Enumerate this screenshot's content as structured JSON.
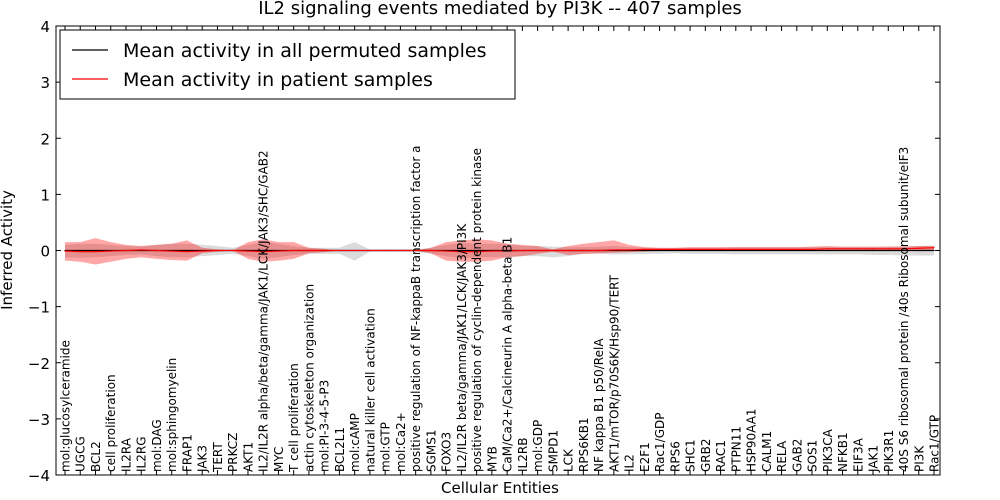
{
  "chart_data": {
    "type": "line",
    "title": "IL2 signaling events mediated by PI3K -- 407 samples",
    "xlabel": "Cellular Entities",
    "ylabel": "Inferred Activity",
    "ylim": [
      -4,
      4
    ],
    "yticks": [
      -4,
      -3,
      -2,
      -1,
      0,
      1,
      2,
      3,
      4
    ],
    "ytick_labels": [
      "−4",
      "−3",
      "−2",
      "−1",
      "0",
      "1",
      "2",
      "3",
      "4"
    ],
    "legend": {
      "placement": "top-left",
      "entries": [
        {
          "name": "Mean activity in all permuted samples",
          "color": "#000000"
        },
        {
          "name": "Mean activity in patient samples",
          "color": "#ff0000"
        }
      ]
    },
    "categories": [
      "mol:glucosylceramide",
      "UGCG",
      "BCL2",
      "cell proliferation",
      "IL2RA",
      "IL2RG",
      "mol:DAG",
      "mol:sphingomyelin",
      "FRAP1",
      "JAK3",
      "TERT",
      "PRKCZ",
      "AKT1",
      "IL2/IL2R alpha/beta/gamma/JAK1/LCK/JAK3/SHC/GAB2",
      "MYC",
      "T cell proliferation",
      "actin cytoskeleton organization",
      "mol:PI-3-4-5-P3",
      "BCL2L1",
      "mol:cAMP",
      "natural killer cell activation",
      "mol:GTP",
      "mol:Ca2+",
      "positive regulation of NF-kappaB transcription factor a",
      "SGMS1",
      "FOXO3",
      "IL2/IL2R beta/gamma/JAK1/LCK/JAK3/PI3K",
      "positive regulation of cyclin-dependent protein kinase",
      "MYB",
      "CaM/Ca2+/Calcineurin A alpha-beta B1",
      "IL2RB",
      "mol:GDP",
      "SMPD1",
      "LCK",
      "RPS6KB1",
      "NF kappa B1 p50/RelA",
      "AKT1/mTOR/p70S6K/Hsp90/TERT",
      "IL2",
      "E2F1",
      "Rac1/GDP",
      "RPS6",
      "SHC1",
      "GRB2",
      "RAC1",
      "PTPN11",
      "HSP90AA1",
      "CALM1",
      "RELA",
      "GAB2",
      "SOS1",
      "PIK3CA",
      "NFKB1",
      "EIF3A",
      "JAK1",
      "PIK3R1",
      "40S S6 ribosomal protein /40s Ribosomal subunit/eIF3",
      "PI3K",
      "Rac1/GTP"
    ],
    "series": [
      {
        "name": "Mean activity in all permuted samples",
        "color": "#000000",
        "values": [
          0,
          0,
          0,
          0,
          0,
          0,
          0,
          0,
          0,
          0,
          0,
          0,
          0,
          0,
          0,
          0,
          0,
          0,
          0,
          0,
          0,
          0,
          0,
          0,
          0,
          0,
          0,
          0,
          0,
          0,
          0,
          0,
          0,
          0,
          0,
          0,
          0,
          0,
          0,
          0,
          0,
          0,
          0,
          0,
          0,
          0,
          0,
          0,
          0,
          0,
          0,
          0,
          0,
          0,
          0,
          0,
          0,
          0
        ]
      },
      {
        "name": "Mean activity in patient samples",
        "color": "#ff0000",
        "values": [
          -0.01,
          -0.02,
          -0.02,
          -0.01,
          0.0,
          0.01,
          0.0,
          -0.01,
          -0.02,
          -0.01,
          0.0,
          0.0,
          -0.01,
          -0.02,
          -0.01,
          0.0,
          0.0,
          0.0,
          0.0,
          0.0,
          0.0,
          0.0,
          0.0,
          0.0,
          0.0,
          -0.01,
          -0.02,
          -0.02,
          -0.01,
          -0.01,
          0.0,
          0.0,
          0.0,
          0.0,
          0.0,
          0.0,
          0.01,
          0.01,
          0.02,
          0.02,
          0.02,
          0.02,
          0.02,
          0.02,
          0.02,
          0.02,
          0.02,
          0.02,
          0.02,
          0.02,
          0.03,
          0.03,
          0.03,
          0.03,
          0.03,
          0.03,
          0.04,
          0.05
        ]
      }
    ],
    "permuted_band_upper": [
      0.1,
      0.12,
      0.12,
      0.1,
      0.08,
      0.07,
      0.1,
      0.12,
      0.12,
      0.1,
      0.08,
      0.05,
      0.1,
      0.15,
      0.12,
      0.08,
      0.05,
      0.05,
      0.05,
      0.15,
      0.02,
      0.02,
      0.02,
      0.02,
      0.05,
      0.1,
      0.14,
      0.12,
      0.12,
      0.12,
      0.08,
      0.08,
      0.07,
      0.06,
      0.06,
      0.07,
      0.08,
      0.06,
      0.05,
      0.04,
      0.04,
      0.05,
      0.05,
      0.05,
      0.06,
      0.06,
      0.06,
      0.06,
      0.06,
      0.06,
      0.06,
      0.06,
      0.06,
      0.06,
      0.07,
      0.08,
      0.08,
      0.09
    ],
    "permuted_band_lower": [
      -0.12,
      -0.13,
      -0.12,
      -0.1,
      -0.08,
      -0.07,
      -0.1,
      -0.12,
      -0.12,
      -0.1,
      -0.08,
      -0.06,
      -0.1,
      -0.15,
      -0.12,
      -0.08,
      -0.06,
      -0.06,
      -0.06,
      -0.18,
      -0.02,
      -0.02,
      -0.02,
      -0.02,
      -0.06,
      -0.1,
      -0.14,
      -0.12,
      -0.12,
      -0.12,
      -0.1,
      -0.1,
      -0.12,
      -0.1,
      -0.06,
      -0.06,
      -0.07,
      -0.07,
      -0.06,
      -0.06,
      -0.05,
      -0.06,
      -0.06,
      -0.06,
      -0.07,
      -0.07,
      -0.07,
      -0.07,
      -0.07,
      -0.07,
      -0.07,
      -0.07,
      -0.07,
      -0.08,
      -0.08,
      -0.09,
      -0.09,
      -0.09
    ],
    "patient_band_upper": [
      0.15,
      0.15,
      0.22,
      0.15,
      0.1,
      0.08,
      0.1,
      0.12,
      0.18,
      0.05,
      0.02,
      0.0,
      0.15,
      0.2,
      0.15,
      0.15,
      0.05,
      0.03,
      0.0,
      0.0,
      0.0,
      0.0,
      0.0,
      0.0,
      0.05,
      0.15,
      0.18,
      0.2,
      0.18,
      0.12,
      0.1,
      0.08,
      0.02,
      0.08,
      0.12,
      0.15,
      0.18,
      0.1,
      0.06,
      0.05,
      0.05,
      0.06,
      0.06,
      0.06,
      0.06,
      0.06,
      0.06,
      0.06,
      0.06,
      0.07,
      0.08,
      0.07,
      0.07,
      0.07,
      0.07,
      0.07,
      0.08,
      0.08
    ],
    "patient_band_lower": [
      -0.18,
      -0.2,
      -0.25,
      -0.2,
      -0.15,
      -0.12,
      -0.15,
      -0.17,
      -0.18,
      -0.05,
      -0.02,
      0.0,
      -0.15,
      -0.2,
      -0.18,
      -0.15,
      -0.05,
      -0.03,
      0.0,
      0.0,
      0.0,
      0.0,
      0.0,
      0.0,
      -0.05,
      -0.18,
      -0.2,
      -0.2,
      -0.18,
      -0.12,
      -0.1,
      -0.06,
      -0.02,
      -0.08,
      -0.06,
      -0.05,
      -0.04,
      -0.03,
      -0.02,
      -0.01,
      0.0,
      0.0,
      0.0,
      0.0,
      0.0,
      0.0,
      0.0,
      0.0,
      0.0,
      0.0,
      0.0,
      0.0,
      0.0,
      0.0,
      0.0,
      0.0,
      0.0,
      0.0
    ]
  }
}
